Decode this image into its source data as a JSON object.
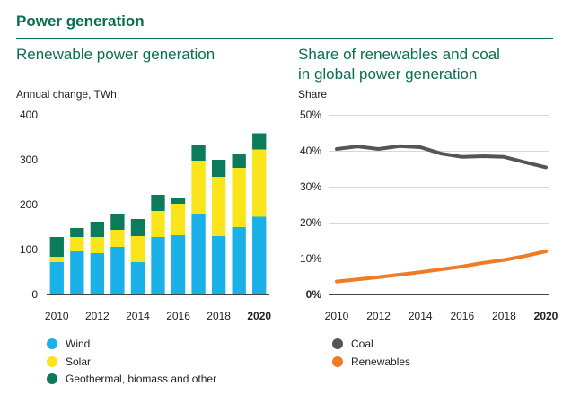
{
  "header": {
    "title": "Power generation"
  },
  "colors": {
    "accent": "#0b6e4f",
    "wind": "#1ab0e8",
    "solar": "#f9e51a",
    "geo": "#0b7b5c",
    "coal": "#555555",
    "renewables": "#ef7b22"
  },
  "chart_data": [
    {
      "type": "bar",
      "stacked": true,
      "title": "Renewable power generation",
      "ylabel": "Annual change, TWh",
      "ylim": [
        0,
        400
      ],
      "yticks": [
        "0",
        "100",
        "200",
        "300",
        "400"
      ],
      "categories": [
        "2010",
        "2011",
        "2012",
        "2013",
        "2014",
        "2015",
        "2016",
        "2017",
        "2018",
        "2019",
        "2020"
      ],
      "xtick_labels": [
        "2010",
        "2012",
        "2014",
        "2016",
        "2018",
        "2020"
      ],
      "series": [
        {
          "name": "Wind",
          "values": [
            72,
            96,
            92,
            106,
            72,
            128,
            132,
            180,
            130,
            150,
            173
          ]
        },
        {
          "name": "Solar",
          "values": [
            12,
            32,
            36,
            38,
            58,
            58,
            70,
            118,
            132,
            132,
            150
          ]
        },
        {
          "name": "Geothermal, biomass and other",
          "values": [
            44,
            20,
            34,
            36,
            38,
            36,
            14,
            34,
            38,
            32,
            36
          ]
        }
      ],
      "legend": {
        "position": "bottom-left"
      }
    },
    {
      "type": "line",
      "title_lines": [
        "Share of renewables and coal",
        "in global power generation"
      ],
      "ylabel": "Share",
      "ylim": [
        0,
        50
      ],
      "yticks": [
        "0%",
        "10%",
        "20%",
        "30%",
        "40%",
        "50%"
      ],
      "x": [
        2010,
        2011,
        2012,
        2013,
        2014,
        2015,
        2016,
        2017,
        2018,
        2019,
        2020
      ],
      "xtick_labels": [
        "2010",
        "2012",
        "2014",
        "2016",
        "2018",
        "2020"
      ],
      "series": [
        {
          "name": "Coal",
          "values": [
            40.5,
            41.2,
            40.5,
            41.3,
            41.0,
            39.2,
            38.3,
            38.5,
            38.3,
            36.8,
            35.4
          ]
        },
        {
          "name": "Renewables",
          "values": [
            3.6,
            4.2,
            4.8,
            5.5,
            6.2,
            7.0,
            7.8,
            8.8,
            9.6,
            10.7,
            12.0
          ]
        }
      ],
      "legend": {
        "position": "bottom-left"
      }
    }
  ]
}
